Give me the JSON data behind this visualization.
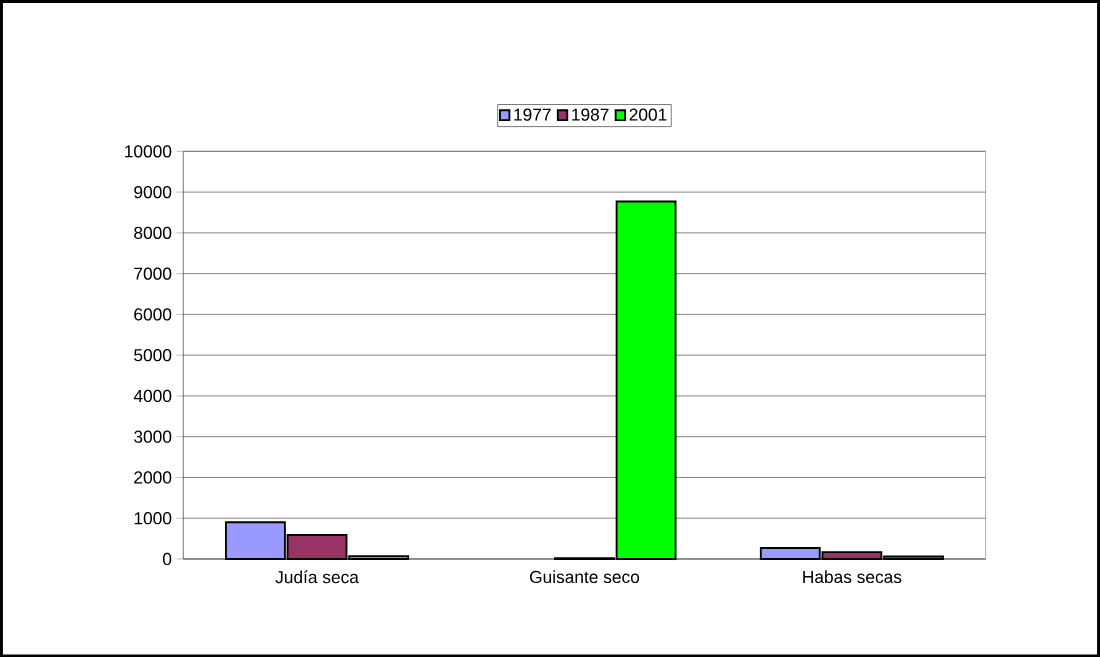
{
  "chart_data": {
    "type": "bar",
    "categories": [
      "Judía seca",
      "Guisante seco",
      "Habas secas"
    ],
    "series": [
      {
        "name": "1977",
        "color": "#9999ff",
        "values": [
          900,
          null,
          270
        ]
      },
      {
        "name": "1987",
        "color": "#993366",
        "values": [
          590,
          20,
          170
        ]
      },
      {
        "name": "2001",
        "color": "#00ff00",
        "values": [
          70,
          8770,
          60
        ]
      }
    ],
    "ylim": [
      0,
      10000
    ],
    "yticks": [
      0,
      1000,
      2000,
      3000,
      4000,
      5000,
      6000,
      7000,
      8000,
      9000,
      10000
    ],
    "grid": "y",
    "legend": "top"
  }
}
